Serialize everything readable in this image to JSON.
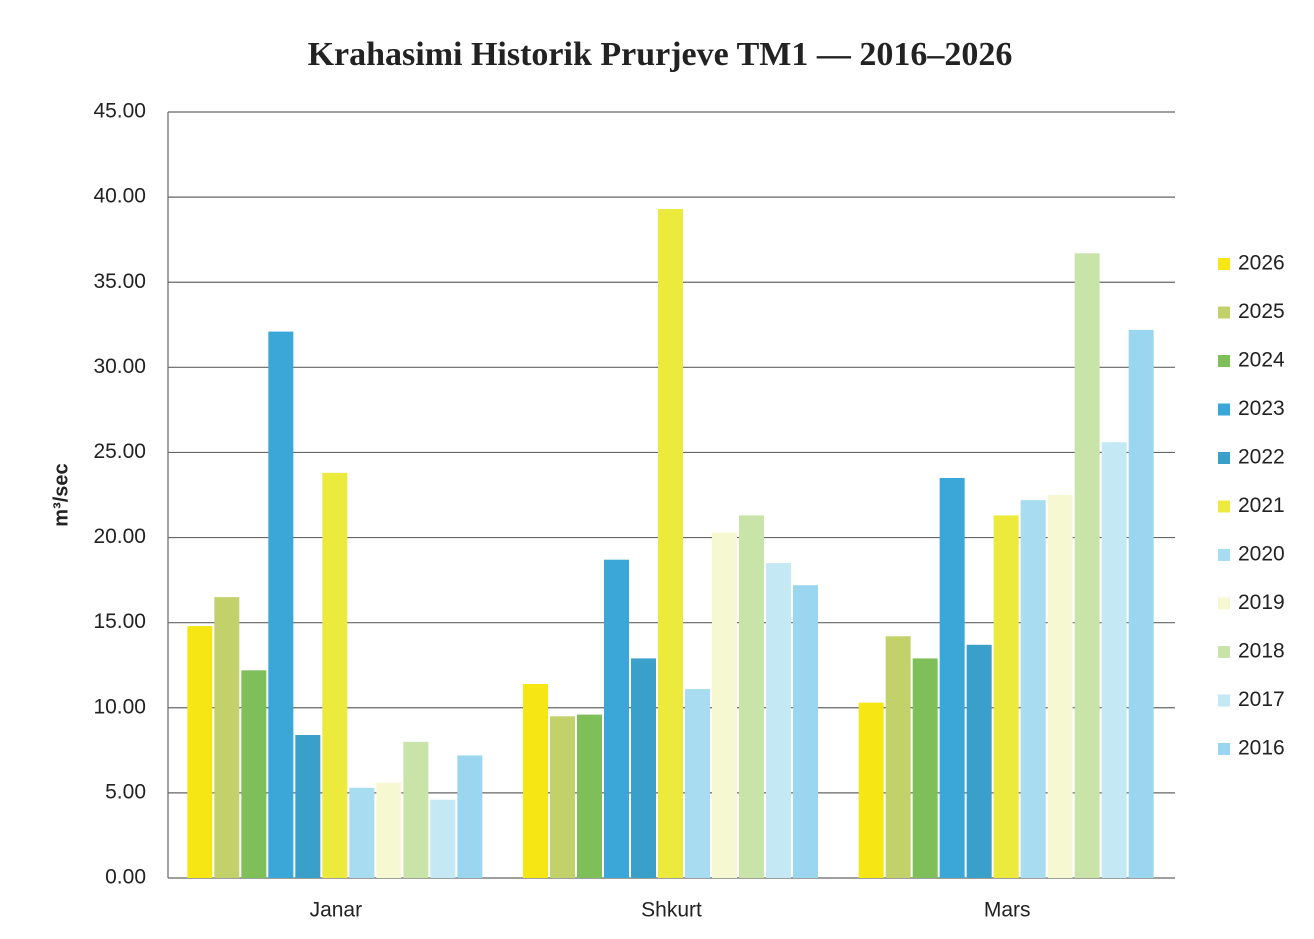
{
  "chart_data": {
    "type": "bar",
    "title": "Krahasimi Historik Prurjeve TM1 — 2016–2026",
    "y_label": "m³/sec",
    "categories": [
      "Janar",
      "Shkurt",
      "Mars"
    ],
    "series": [
      {
        "name": "2026",
        "color": "#f5e614",
        "values": [
          14.8,
          11.4,
          10.3
        ]
      },
      {
        "name": "2025",
        "color": "#c3d16a",
        "values": [
          16.5,
          9.5,
          14.2
        ]
      },
      {
        "name": "2024",
        "color": "#7fbf5a",
        "values": [
          12.2,
          9.6,
          12.9
        ]
      },
      {
        "name": "2023",
        "color": "#3aa7d8",
        "values": [
          32.1,
          18.7,
          23.5
        ]
      },
      {
        "name": "2022",
        "color": "#3a9fc9",
        "values": [
          8.4,
          12.9,
          13.7
        ]
      },
      {
        "name": "2021",
        "color": "#ecea3c",
        "values": [
          23.8,
          39.3,
          21.3
        ]
      },
      {
        "name": "2020",
        "color": "#a8dcf0",
        "values": [
          5.3,
          11.1,
          22.2
        ]
      },
      {
        "name": "2019",
        "color": "#f6f8d2",
        "values": [
          5.6,
          20.3,
          22.5
        ]
      },
      {
        "name": "2018",
        "color": "#c9e4a8",
        "values": [
          8.0,
          21.3,
          36.7
        ]
      },
      {
        "name": "2017",
        "color": "#c5e8f5",
        "values": [
          4.6,
          18.5,
          25.6
        ]
      },
      {
        "name": "2016",
        "color": "#9ad6f0",
        "values": [
          7.2,
          17.2,
          32.2
        ]
      }
    ],
    "ylim": [
      0,
      45
    ],
    "yticks": [
      {
        "value": 0,
        "label": "0.00"
      },
      {
        "value": 5,
        "label": "5.00"
      },
      {
        "value": 10,
        "label": "10.00"
      },
      {
        "value": 15,
        "label": "15.00"
      },
      {
        "value": 20,
        "label": "20.00"
      },
      {
        "value": 25,
        "label": "25.00"
      },
      {
        "value": 30,
        "label": "30.00"
      },
      {
        "value": 35,
        "label": "35.00"
      },
      {
        "value": 40,
        "label": "40.00"
      },
      {
        "value": 45,
        "label": "45.00"
      }
    ],
    "grid": true,
    "legend": "right"
  }
}
